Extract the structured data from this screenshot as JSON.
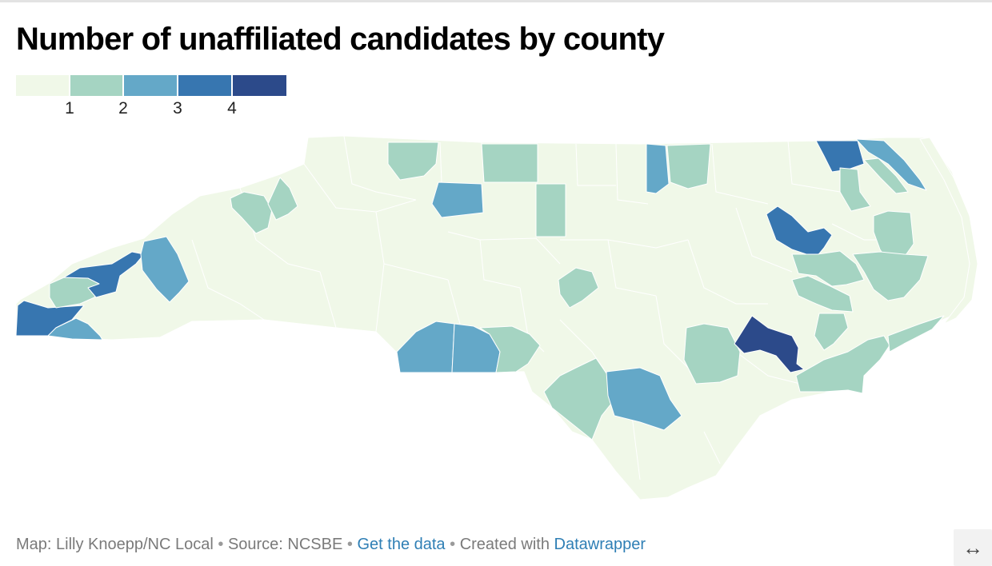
{
  "title": "Number of unaffiliated candidates by county",
  "legend": {
    "ticks": [
      "1",
      "2",
      "3",
      "4"
    ],
    "colors": [
      "#f0f8e8",
      "#a5d4c2",
      "#64a8c8",
      "#3776b0",
      "#2c4a8a"
    ]
  },
  "map": {
    "state": "North Carolina",
    "counties_highlighted": [
      {
        "name": "Cherokee",
        "value": 3
      },
      {
        "name": "Clay",
        "value": 2
      },
      {
        "name": "Macon",
        "value": 1
      },
      {
        "name": "Haywood",
        "value": 3
      },
      {
        "name": "Madison",
        "value": 2
      },
      {
        "name": "Buncombe",
        "value": 2
      },
      {
        "name": "Yancey",
        "value": 1
      },
      {
        "name": "Mitchell",
        "value": 1
      },
      {
        "name": "Avery",
        "value": 1
      },
      {
        "name": "Ashe",
        "value": 1
      },
      {
        "name": "Alleghany",
        "value": 1
      },
      {
        "name": "Stokes",
        "value": 1
      },
      {
        "name": "Forsyth",
        "value": 2
      },
      {
        "name": "Person",
        "value": 1
      },
      {
        "name": "Orange",
        "value": 1
      },
      {
        "name": "Warren",
        "value": 2
      },
      {
        "name": "Halifax",
        "value": 1
      },
      {
        "name": "Gates",
        "value": 3
      },
      {
        "name": "Camden",
        "value": 2
      },
      {
        "name": "Pasquotank",
        "value": 1
      },
      {
        "name": "Perquimans",
        "value": 1
      },
      {
        "name": "Martin",
        "value": 2
      },
      {
        "name": "Tyrrell",
        "value": 1
      },
      {
        "name": "Beaufort",
        "value": 1
      },
      {
        "name": "Hyde",
        "value": 1
      },
      {
        "name": "Pamlico",
        "value": 1
      },
      {
        "name": "Craven",
        "value": 1
      },
      {
        "name": "Carteret",
        "value": 1
      },
      {
        "name": "Lee",
        "value": 1
      },
      {
        "name": "Mecklenburg",
        "value": 2
      },
      {
        "name": "Cabarrus",
        "value": 2
      },
      {
        "name": "Stanly",
        "value": 1
      },
      {
        "name": "Richmond",
        "value": 1
      },
      {
        "name": "Robeson",
        "value": 2
      },
      {
        "name": "Sampson",
        "value": 1
      },
      {
        "name": "Duplin",
        "value": 4
      }
    ]
  },
  "footer": {
    "credit": "Map: Lilly Knoepp/NC Local",
    "sep1": "•",
    "source": "Source: NCSBE",
    "sep2": "•",
    "get_data": "Get the data",
    "sep3": "•",
    "created_with": "Created with",
    "datawrapper": "Datawrapper"
  },
  "expand_icon": "↔"
}
